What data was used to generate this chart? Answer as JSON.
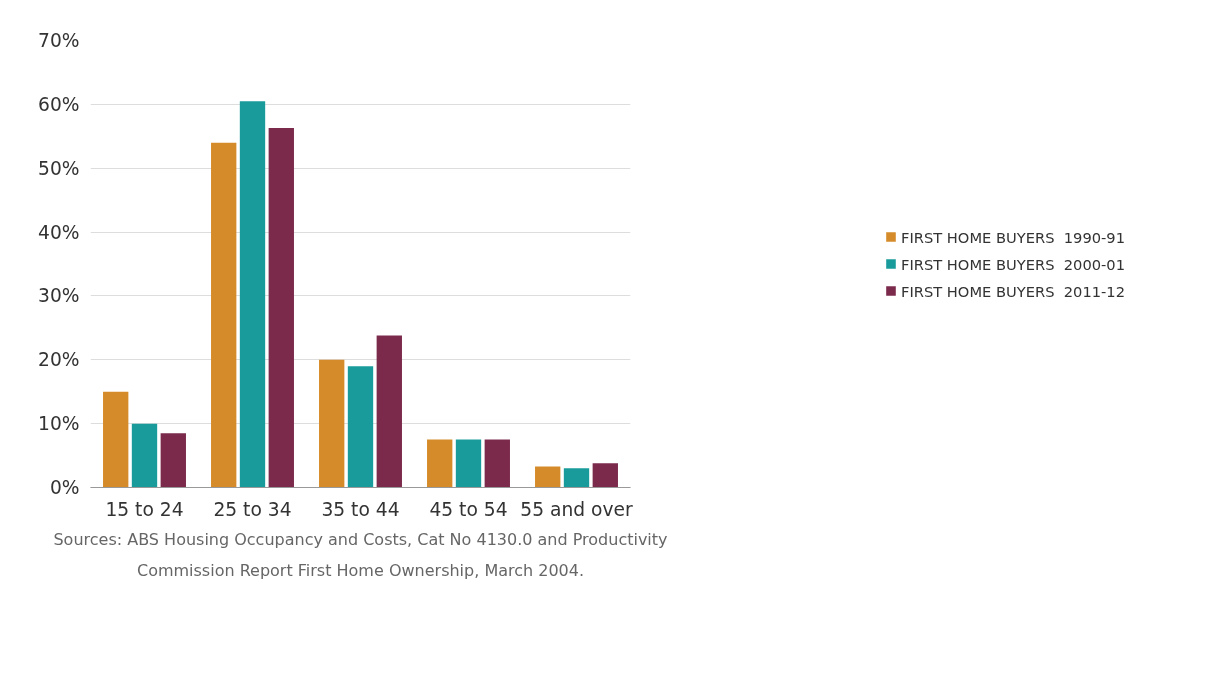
{
  "chart_data": {
    "type": "bar",
    "categories": [
      "15 to 24",
      "25 to 34",
      "35 to 44",
      "45 to 54",
      "55 and over"
    ],
    "series": [
      {
        "name": "FIRST HOME BUYERS  1990-91",
        "color": "#d58b2a",
        "values": [
          15,
          54,
          20,
          7.5,
          3.3
        ]
      },
      {
        "name": "FIRST HOME BUYERS  2000-01",
        "color": "#1a9b9b",
        "values": [
          10,
          60.5,
          19,
          7.5,
          3
        ]
      },
      {
        "name": "FIRST HOME BUYERS  2011-12",
        "color": "#7b2a4c",
        "values": [
          8.5,
          56.3,
          23.8,
          7.5,
          3.8
        ]
      }
    ],
    "ylim": [
      0,
      70
    ],
    "yticks": [
      {
        "value": 0,
        "label": "0%"
      },
      {
        "value": 10,
        "label": "10%"
      },
      {
        "value": 20,
        "label": "20%"
      },
      {
        "value": 30,
        "label": "30%"
      },
      {
        "value": 40,
        "label": "40%"
      },
      {
        "value": 50,
        "label": "50%"
      },
      {
        "value": 60,
        "label": "60%"
      },
      {
        "value": 70,
        "label": "70%"
      }
    ],
    "grid": "y",
    "legend": "right",
    "annotations": [
      "Sources: ABS Housing Occupancy and Costs, Cat No 4130.0 and Productivity Commission Report First Home Ownership, March 2004."
    ]
  }
}
